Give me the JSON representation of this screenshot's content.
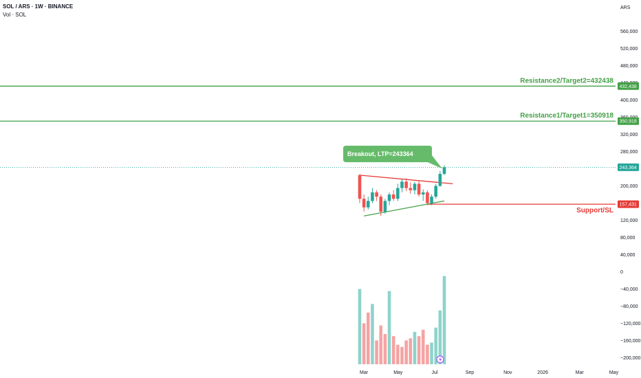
{
  "header": {
    "title": "SOL / ARS · 1W · BINANCE",
    "volume_label": "Vol · SOL"
  },
  "colors": {
    "up": "#26a69a",
    "down": "#ef5350",
    "annotation_green": "#43a047",
    "annotation_red": "#e53935",
    "callout": "#66bb6a",
    "last_price_line": "#26a69a",
    "volume_up": "#8fd3cb",
    "volume_down": "#f5a3a3"
  },
  "chart_data": {
    "type": "candlestick",
    "currency_label": "ARS",
    "price_axis_ticks": [
      "560,000",
      "520,000",
      "480,000",
      "440,000",
      "400,000",
      "360,000",
      "320,000",
      "280,000",
      "240,000",
      "200,000",
      "160,000",
      "120,000",
      "80,000",
      "40,000",
      "0",
      "−40,000",
      "−80,000",
      "−120,000",
      "−160,000",
      "−200,000"
    ],
    "price_axis_tick_values": [
      560000,
      520000,
      480000,
      440000,
      400000,
      360000,
      320000,
      280000,
      240000,
      200000,
      160000,
      120000,
      80000,
      40000,
      0,
      -40000,
      -80000,
      -120000,
      -160000,
      -200000
    ],
    "time_axis_labels": [
      "Mar",
      "May",
      "Jul",
      "Sep",
      "Nov",
      "2026",
      "Mar",
      "May"
    ],
    "time_axis_positions_weeks": [
      0,
      8,
      17,
      25,
      34,
      42,
      51,
      59
    ],
    "ylim": [
      -225000,
      585000
    ],
    "candles": [
      {
        "o": 225000,
        "h": 228000,
        "l": 160000,
        "c": 170000
      },
      {
        "o": 170000,
        "h": 180000,
        "l": 140000,
        "c": 150000
      },
      {
        "o": 150000,
        "h": 175000,
        "l": 145000,
        "c": 165000
      },
      {
        "o": 165000,
        "h": 195000,
        "l": 160000,
        "c": 185000
      },
      {
        "o": 185000,
        "h": 190000,
        "l": 165000,
        "c": 175000
      },
      {
        "o": 175000,
        "h": 180000,
        "l": 130000,
        "c": 140000
      },
      {
        "o": 140000,
        "h": 170000,
        "l": 135000,
        "c": 165000
      },
      {
        "o": 165000,
        "h": 185000,
        "l": 155000,
        "c": 180000
      },
      {
        "o": 180000,
        "h": 190000,
        "l": 165000,
        "c": 170000
      },
      {
        "o": 170000,
        "h": 205000,
        "l": 165000,
        "c": 195000
      },
      {
        "o": 195000,
        "h": 215000,
        "l": 185000,
        "c": 210000
      },
      {
        "o": 210000,
        "h": 218000,
        "l": 188000,
        "c": 195000
      },
      {
        "o": 195000,
        "h": 208000,
        "l": 182000,
        "c": 190000
      },
      {
        "o": 190000,
        "h": 210000,
        "l": 180000,
        "c": 205000
      },
      {
        "o": 205000,
        "h": 212000,
        "l": 175000,
        "c": 180000
      },
      {
        "o": 180000,
        "h": 192000,
        "l": 165000,
        "c": 185000
      },
      {
        "o": 185000,
        "h": 190000,
        "l": 155000,
        "c": 160000
      },
      {
        "o": 160000,
        "h": 180000,
        "l": 155000,
        "c": 175000
      },
      {
        "o": 175000,
        "h": 205000,
        "l": 170000,
        "c": 200000
      },
      {
        "o": 200000,
        "h": 235000,
        "l": 198000,
        "c": 228000
      },
      {
        "o": 228000,
        "h": 248000,
        "l": 225000,
        "c": 243364
      }
    ],
    "volume_units_in_price_axis": [
      -40000,
      -120000,
      -95000,
      -75000,
      -160000,
      -125000,
      -145000,
      -45000,
      -150000,
      -170000,
      -175000,
      -160000,
      -155000,
      -140000,
      -150000,
      -135000,
      -170000,
      -165000,
      -130000,
      -90000,
      -10000
    ],
    "volume_colors": [
      "up",
      "down",
      "down",
      "up",
      "down",
      "down",
      "down",
      "up",
      "down",
      "down",
      "down",
      "down",
      "down",
      "up",
      "down",
      "down",
      "down",
      "up",
      "up",
      "up",
      "up"
    ],
    "levels": [
      {
        "label": "Resistance2/Target2=432438",
        "tag": "432,438",
        "value": 432438,
        "color_key": "annotation_green"
      },
      {
        "label": "Resistance1/Target1=350918",
        "tag": "350,918",
        "value": 350918,
        "color_key": "annotation_green"
      },
      {
        "label": "Support/SL",
        "tag": "157,431",
        "value": 157431,
        "color_key": "annotation_red"
      }
    ],
    "last_price": {
      "value": 243364,
      "tag": "243,364"
    },
    "callout": "Breakout, LTP=243364",
    "trendlines": [
      {
        "name": "upper",
        "color_key": "annotation_red",
        "from": {
          "week": 0,
          "price": 225000
        },
        "to": {
          "week": 22,
          "price": 205000
        }
      },
      {
        "name": "lower",
        "color_key": "annotation_green",
        "from": {
          "week": 1,
          "price": 130000
        },
        "to": {
          "week": 20,
          "price": 165000
        }
      }
    ]
  }
}
